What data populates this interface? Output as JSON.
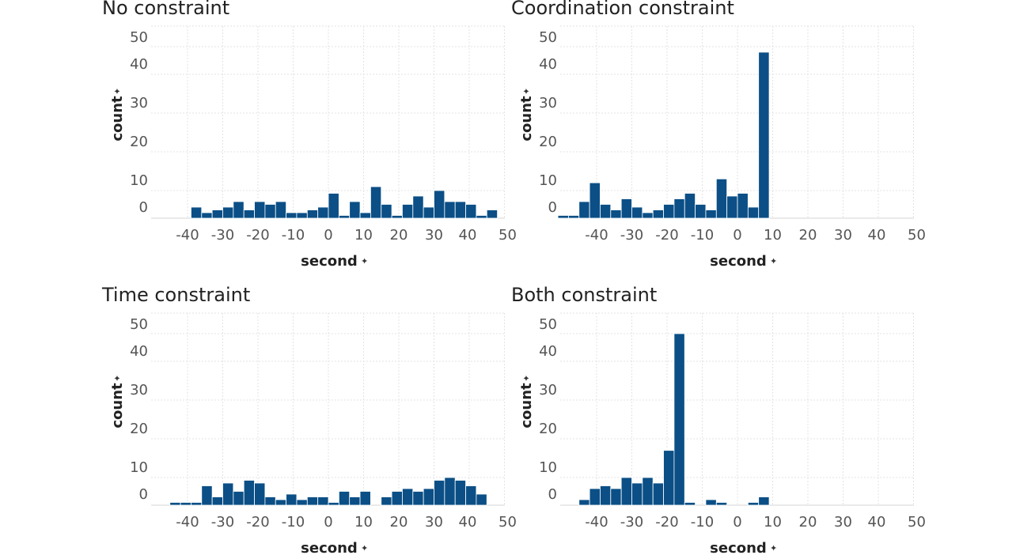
{
  "chart_data": [
    {
      "type": "bar",
      "title": "No constraint",
      "xlabel": "second",
      "ylabel": "count",
      "pin_icon": "pin-icon",
      "bar_color": "#0b4f86",
      "bin_width": 3,
      "x_ticks": [
        -40,
        -30,
        -20,
        -10,
        0,
        10,
        20,
        30,
        40,
        50
      ],
      "y_ticks": [
        0,
        10,
        20,
        30,
        40,
        50
      ],
      "bins_left": [
        -39,
        -36,
        -33,
        -30,
        -27,
        -24,
        -21,
        -18,
        -15,
        -12,
        -9,
        -6,
        -3,
        0,
        3,
        6,
        9,
        12,
        15,
        18,
        21,
        24,
        27,
        30,
        33,
        36,
        39,
        42,
        45
      ],
      "values": [
        4,
        2,
        3,
        4,
        6,
        3,
        6,
        5,
        6,
        2,
        2,
        3,
        4,
        9,
        1,
        6,
        2,
        11,
        5,
        1,
        5,
        8,
        4,
        10,
        6,
        6,
        5,
        1,
        3
      ]
    },
    {
      "type": "bar",
      "title": "Coordination constraint",
      "xlabel": "second",
      "ylabel": "count",
      "pin_icon": "pin-icon",
      "bar_color": "#0b4f86",
      "bin_width": 3,
      "x_ticks": [
        -40,
        -30,
        -20,
        -10,
        0,
        10,
        20,
        30,
        40,
        50
      ],
      "y_ticks": [
        0,
        10,
        20,
        30,
        40,
        50
      ],
      "bins_left": [
        -51,
        -48,
        -45,
        -42,
        -39,
        -36,
        -33,
        -30,
        -27,
        -24,
        -21,
        -18,
        -15,
        -12,
        -9,
        -6,
        -3,
        0,
        3,
        6
      ],
      "values": [
        1,
        1,
        6,
        12,
        5,
        3,
        7,
        4,
        2,
        3,
        5,
        7,
        9,
        5,
        3,
        13,
        8,
        9,
        4,
        48
      ]
    },
    {
      "type": "bar",
      "title": "Time constraint",
      "xlabel": "second",
      "ylabel": "count",
      "pin_icon": "pin-icon",
      "bar_color": "#0b4f86",
      "bin_width": 3,
      "x_ticks": [
        -40,
        -30,
        -20,
        -10,
        0,
        10,
        20,
        30,
        40,
        50
      ],
      "y_ticks": [
        0,
        10,
        20,
        30,
        40,
        50
      ],
      "bins_left": [
        -45,
        -42,
        -39,
        -36,
        -33,
        -30,
        -27,
        -24,
        -21,
        -18,
        -15,
        -12,
        -9,
        -6,
        -3,
        0,
        3,
        6,
        9,
        12,
        15,
        18,
        21,
        24,
        27,
        30,
        33,
        36,
        39,
        42
      ],
      "values": [
        1,
        1,
        1,
        7,
        3,
        8,
        5,
        9,
        8,
        3,
        2,
        4,
        2,
        3,
        3,
        1,
        5,
        3,
        5,
        0,
        3,
        5,
        6,
        5,
        6,
        9,
        10,
        9,
        7,
        4
      ]
    },
    {
      "type": "bar",
      "title": "Both constraint",
      "xlabel": "second",
      "ylabel": "count",
      "pin_icon": "pin-icon",
      "bar_color": "#0b4f86",
      "bin_width": 3,
      "x_ticks": [
        -40,
        -30,
        -20,
        -10,
        0,
        10,
        20,
        30,
        40,
        50
      ],
      "y_ticks": [
        0,
        10,
        20,
        30,
        40,
        50
      ],
      "bins_left": [
        -45,
        -42,
        -39,
        -36,
        -33,
        -30,
        -27,
        -24,
        -21,
        -18,
        -15,
        -12,
        -9,
        -6,
        -3,
        0,
        3,
        6
      ],
      "values": [
        2,
        6,
        7,
        6,
        10,
        8,
        10,
        8,
        17,
        50,
        1,
        0,
        2,
        1,
        0,
        0,
        1,
        3
      ]
    }
  ]
}
